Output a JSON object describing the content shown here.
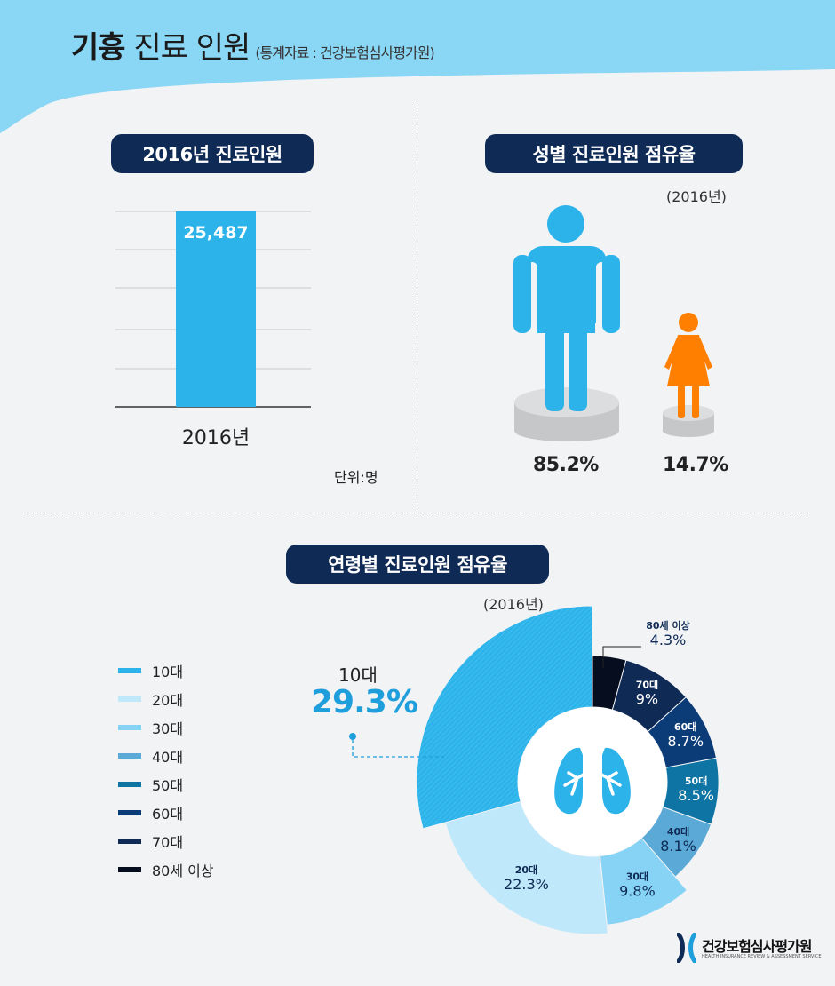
{
  "header": {
    "title_bold": "기흉",
    "title_rest": "진료 인원",
    "source": "(통계자료 : 건강보험심사평가원)"
  },
  "colors": {
    "header_bg": "#8ad6f5",
    "pill_bg": "#0f2b55",
    "bar": "#2cb3ea",
    "male": "#2cb3ea",
    "female": "#ff8000",
    "pedestal": "#cfd0d2",
    "highlight": "#1e9fdb"
  },
  "panel_total": {
    "title": "2016년 진료인원",
    "unit": "단위:명"
  },
  "panel_gender": {
    "title": "성별 진료인원 점유율",
    "year_note": "(2016년)",
    "icons": [
      "male-figure-icon",
      "female-figure-icon"
    ]
  },
  "panel_age": {
    "title": "연령별 진료인원 점유율",
    "year_note": "(2016년)",
    "callout_label": "10대",
    "callout_value": "29.3%",
    "center_icon": "lungs-icon"
  },
  "footer": {
    "logo_icon": "hira-logo-icon",
    "org_name": "건강보험심사평가원",
    "org_name_en": "HEALTH INSURANCE REVIEW & ASSESSMENT SERVICE"
  },
  "chart_data": [
    {
      "type": "bar",
      "title": "2016년 진료인원",
      "categories": [
        "2016년"
      ],
      "values": [
        25487
      ],
      "value_labels": [
        "25,487"
      ],
      "unit": "단위:명",
      "grid": true
    },
    {
      "type": "bar",
      "title": "성별 진료인원 점유율",
      "subtitle": "(2016년)",
      "categories": [
        "male",
        "female"
      ],
      "values": [
        85.2,
        14.7
      ],
      "value_labels": [
        "85.2%",
        "14.7%"
      ]
    },
    {
      "type": "pie",
      "title": "연령별 진료인원 점유율",
      "subtitle": "(2016년)",
      "categories": [
        "80세 이상",
        "70대",
        "60대",
        "50대",
        "40대",
        "30대",
        "20대",
        "10대"
      ],
      "legend_order": [
        "10대",
        "20대",
        "30대",
        "40대",
        "50대",
        "60대",
        "70대",
        "80세 이상"
      ],
      "values": [
        4.3,
        9,
        8.7,
        8.5,
        8.1,
        9.8,
        22.3,
        29.3
      ],
      "value_labels": [
        "4.3%",
        "9%",
        "8.7%",
        "8.5%",
        "8.1%",
        "9.8%",
        "22.3%",
        "29.3%"
      ],
      "colors": {
        "10대": "#2cb3ea",
        "20대": "#bfe8fb",
        "30대": "#86d3f5",
        "40대": "#5aa9d6",
        "50대": "#0e74a3",
        "60대": "#0c3c78",
        "70대": "#0f2b55",
        "80세 이상": "#060d1f"
      },
      "legend_placement": "left"
    }
  ]
}
